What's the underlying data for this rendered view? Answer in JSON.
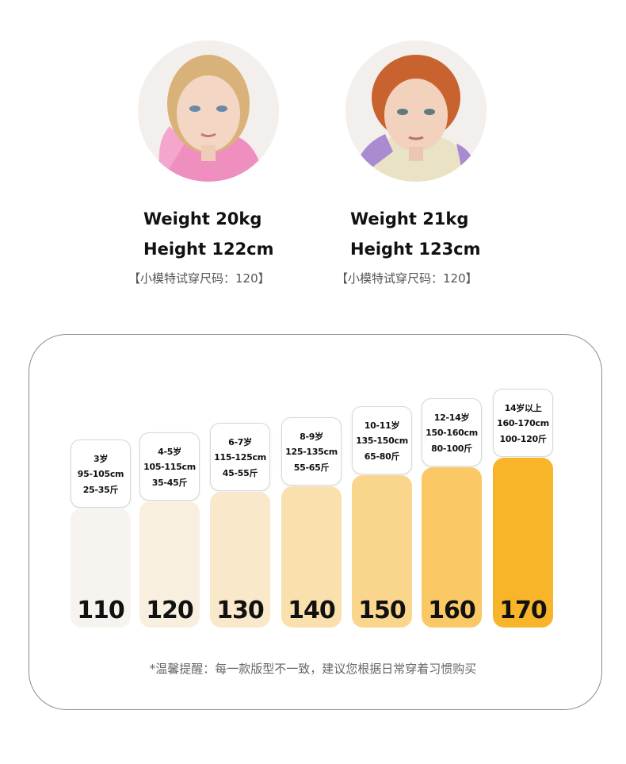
{
  "models": [
    {
      "weight": "Weight  20kg",
      "height": "Height  122cm",
      "note": "【小模特试穿尺码：120】"
    },
    {
      "weight": "Weight  21kg",
      "height": "Height  123cm",
      "note": "【小模特试穿尺码：120】"
    }
  ],
  "sizes": [
    {
      "size": "110",
      "age": "3岁",
      "height_range": "95-105cm",
      "weight_range": "25-35斤",
      "color": "#f7f4ef"
    },
    {
      "size": "120",
      "age": "4-5岁",
      "height_range": "105-115cm",
      "weight_range": "35-45斤",
      "color": "#f8efde"
    },
    {
      "size": "130",
      "age": "6-7岁",
      "height_range": "115-125cm",
      "weight_range": "45-55斤",
      "color": "#f9e8c9"
    },
    {
      "size": "140",
      "age": "8-9岁",
      "height_range": "125-135cm",
      "weight_range": "55-65斤",
      "color": "#f9e0ad"
    },
    {
      "size": "150",
      "age": "10-11岁",
      "height_range": "135-150cm",
      "weight_range": "65-80斤",
      "color": "#fad68d"
    },
    {
      "size": "160",
      "age": "12-14岁",
      "height_range": "150-160cm",
      "weight_range": "80-100斤",
      "color": "#fac865"
    },
    {
      "size": "170",
      "age": "14岁以上",
      "height_range": "160-170cm",
      "weight_range": "100-120斤",
      "color": "#f8b52a"
    }
  ],
  "footnote": "*温馨提醒：每一款版型不一致，建议您根据日常穿着习惯购买"
}
